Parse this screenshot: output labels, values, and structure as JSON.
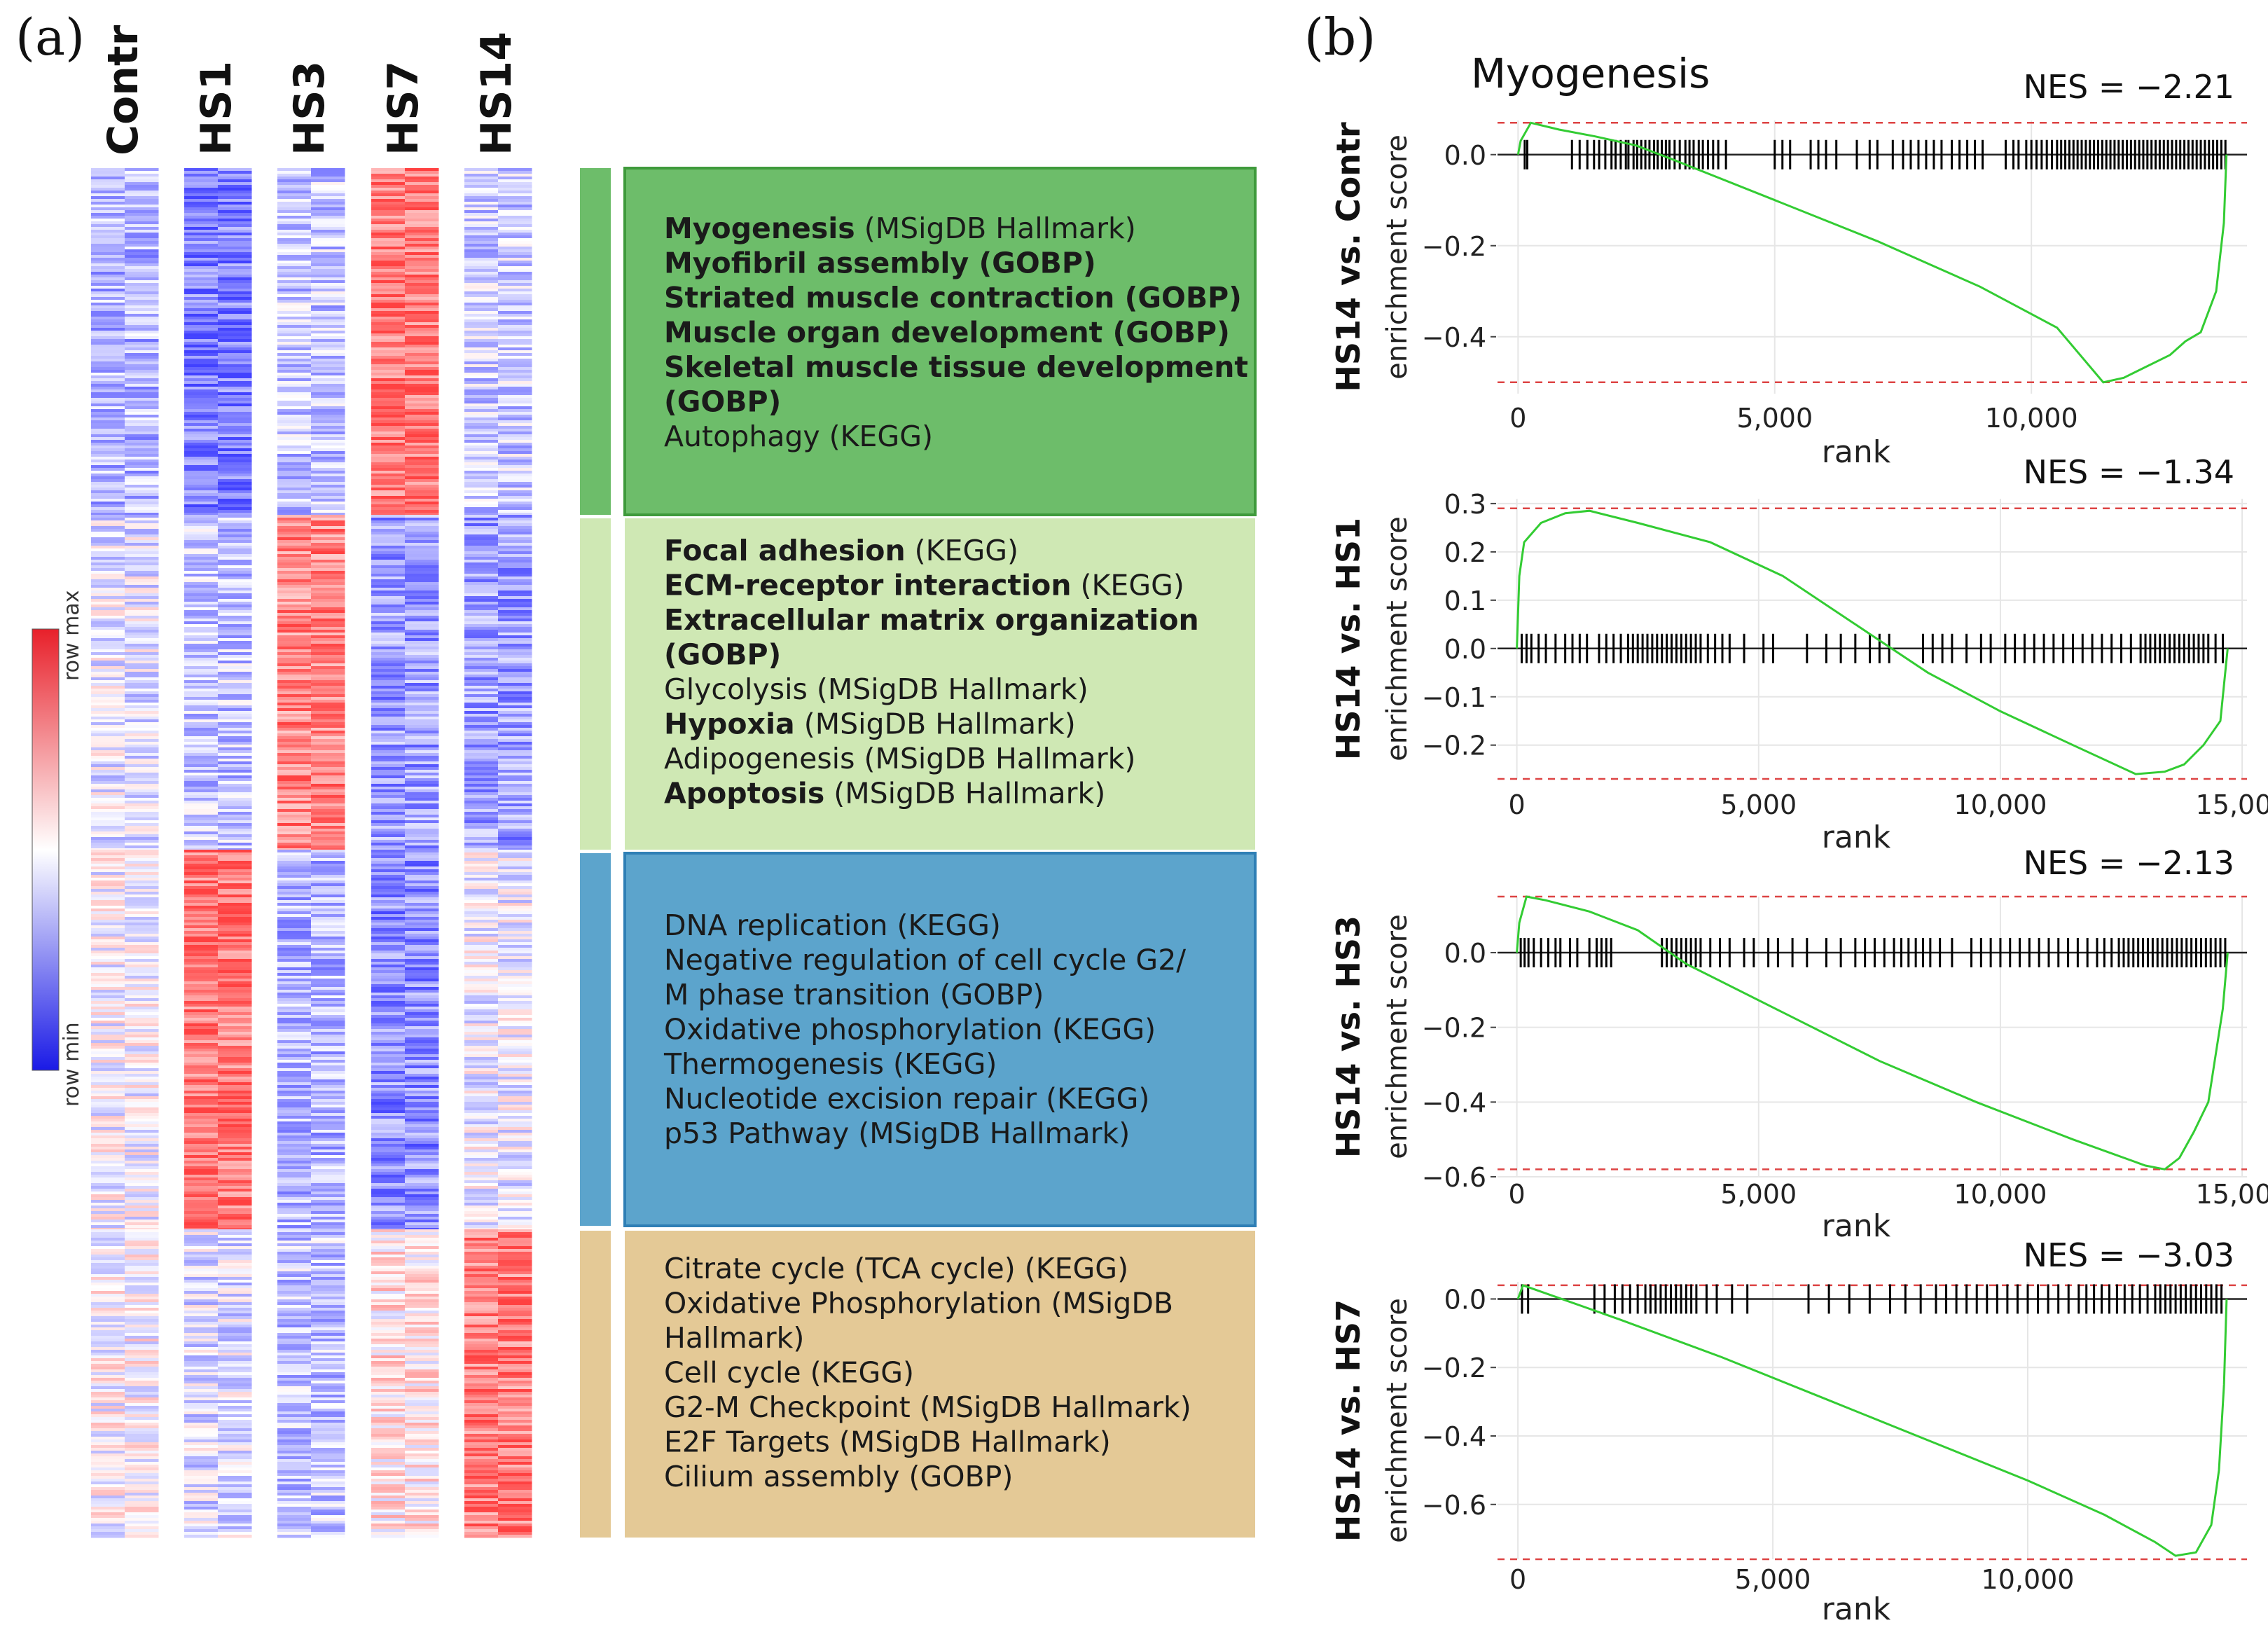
{
  "panel_a": {
    "letter": "(a)",
    "columns": [
      "Contr",
      "HS1",
      "HS3",
      "HS7",
      "HS14"
    ],
    "legend": {
      "max_label": "row max",
      "min_label": "row min"
    },
    "clusters": [
      {
        "color": "#6dbd6a",
        "box_color": "#6dbd6a",
        "column_means": [
          -0.45,
          -0.8,
          -0.35,
          0.85,
          -0.3
        ],
        "terms": [
          [
            {
              "text": "Myogenesis",
              "bold": true
            },
            {
              "text": " (MSigDB Hallmark)",
              "bold": false
            }
          ],
          [
            {
              "text": "Myofibril assembly (GOBP)",
              "bold": true
            }
          ],
          [
            {
              "text": "Striated muscle contraction (GOBP)",
              "bold": true
            }
          ],
          [
            {
              "text": "Muscle organ development (GOBP)",
              "bold": true
            }
          ],
          [
            {
              "text": "Skeletal muscle tissue development",
              "bold": true
            }
          ],
          [
            {
              "text": "(GOBP)",
              "bold": true
            }
          ],
          [
            {
              "text": "Autophagy (KEGG)",
              "bold": false
            }
          ]
        ]
      },
      {
        "color": "#cfe8b4",
        "box_color": "#cfe8b4",
        "column_means": [
          -0.15,
          -0.35,
          0.75,
          -0.6,
          -0.6
        ],
        "terms": [
          [
            {
              "text": "Focal adhesion",
              "bold": true
            },
            {
              "text": " (KEGG)",
              "bold": false
            }
          ],
          [
            {
              "text": "ECM-receptor interaction",
              "bold": true
            },
            {
              "text": " (KEGG)",
              "bold": false
            }
          ],
          [
            {
              "text": "Extracellular matrix organization",
              "bold": true
            }
          ],
          [
            {
              "text": "(GOBP)",
              "bold": true
            }
          ],
          [
            {
              "text": "Glycolysis (MSigDB Hallmark)",
              "bold": false
            }
          ],
          [
            {
              "text": "Hypoxia",
              "bold": true
            },
            {
              "text": " (MSigDB Hallmark)",
              "bold": false
            }
          ],
          [
            {
              "text": "Adipogenesis (MSigDB Hallmark)",
              "bold": false
            }
          ],
          [
            {
              "text": "Apoptosis",
              "bold": true
            },
            {
              "text": " (MSigDB Hallmark)",
              "bold": false
            }
          ]
        ]
      },
      {
        "color": "#5ca4cc",
        "box_color": "#5ca4cc",
        "column_means": [
          -0.05,
          0.85,
          -0.45,
          -0.7,
          -0.1
        ],
        "terms": [
          [
            {
              "text": "DNA replication (KEGG)",
              "bold": false
            }
          ],
          [
            {
              "text": "Negative regulation of cell cycle G2/",
              "bold": false
            }
          ],
          [
            {
              "text": "M phase transition (GOBP)",
              "bold": false
            }
          ],
          [
            {
              "text": "Oxidative phosphorylation (KEGG)",
              "bold": false
            }
          ],
          [
            {
              "text": "Thermogenesis (KEGG)",
              "bold": false
            }
          ],
          [
            {
              "text": "Nucleotide excision repair (KEGG)",
              "bold": false
            }
          ],
          [
            {
              "text": "p53 Pathway (MSigDB Hallmark)",
              "bold": false
            }
          ]
        ]
      },
      {
        "color": "#e4c996",
        "box_color": "#e4c996",
        "column_means": [
          0.0,
          -0.2,
          -0.35,
          0.15,
          0.8
        ],
        "terms": [
          [
            {
              "text": "Citrate cycle (TCA cycle) (KEGG)",
              "bold": false
            }
          ],
          [
            {
              "text": "Oxidative Phosphorylation (MSigDB",
              "bold": false
            }
          ],
          [
            {
              "text": "Hallmark)",
              "bold": false
            }
          ],
          [
            {
              "text": "Cell cycle (KEGG)",
              "bold": false
            }
          ],
          [
            {
              "text": "G2-M Checkpoint (MSigDB Hallmark)",
              "bold": false
            }
          ],
          [
            {
              "text": "E2F Targets (MSigDB Hallmark)",
              "bold": false
            }
          ],
          [
            {
              "text": "Cilium assembly (GOBP)",
              "bold": false
            }
          ]
        ]
      }
    ]
  },
  "panel_b": {
    "letter": "(b)",
    "gene_set": "Myogenesis",
    "x_label": "rank",
    "y_label": "enrichment score",
    "line_color": "#33cc33",
    "bound_color": "#dd4444"
  },
  "chart_data": [
    {
      "type": "line",
      "comparison": "HS14 vs. Contr",
      "nes_label": "NES = −2.21",
      "xlim": [
        -400,
        14200
      ],
      "ylim": [
        -0.525,
        0.075
      ],
      "xticks": [
        0,
        5000,
        10000
      ],
      "xtick_labels": [
        "0",
        "5,000",
        "10,000"
      ],
      "yticks": [
        0.0,
        -0.2,
        -0.4
      ],
      "ytick_labels": [
        "0.0",
        "−0.2",
        "−0.4"
      ],
      "max_es": 0.07,
      "min_es": -0.5,
      "es_points": [
        [
          0,
          0
        ],
        [
          50,
          0.03
        ],
        [
          250,
          0.07
        ],
        [
          800,
          0.055
        ],
        [
          1500,
          0.04
        ],
        [
          2300,
          0.02
        ],
        [
          3000,
          -0.01
        ],
        [
          5000,
          -0.1
        ],
        [
          7000,
          -0.19
        ],
        [
          9000,
          -0.29
        ],
        [
          10500,
          -0.38
        ],
        [
          11400,
          -0.5
        ],
        [
          11800,
          -0.49
        ],
        [
          12700,
          -0.44
        ],
        [
          13000,
          -0.41
        ],
        [
          13300,
          -0.39
        ],
        [
          13600,
          -0.3
        ],
        [
          13750,
          -0.15
        ],
        [
          13800,
          0
        ]
      ],
      "hits": [
        130,
        180,
        1050,
        1200,
        1350,
        1480,
        1580,
        1700,
        1820,
        1900,
        2000,
        2100,
        2150,
        2250,
        2320,
        2400,
        2480,
        2560,
        2650,
        2720,
        2800,
        2880,
        2950,
        3050,
        3150,
        3260,
        3340,
        3420,
        3520,
        3600,
        3700,
        3800,
        3900,
        4050,
        5000,
        5150,
        5300,
        5700,
        5850,
        6000,
        6200,
        6600,
        6850,
        7000,
        7300,
        7500,
        7650,
        7800,
        7950,
        8100,
        8250,
        8450,
        8600,
        8750,
        8900,
        9050,
        9500,
        9650,
        9750,
        9900,
        10000,
        10100,
        10200,
        10300,
        10400,
        10500,
        10580,
        10660,
        10740,
        10820,
        10900,
        10980,
        11060,
        11140,
        11220,
        11300,
        11380,
        11460,
        11540,
        11620,
        11700,
        11780,
        11860,
        11940,
        12020,
        12100,
        12180,
        12260,
        12340,
        12420,
        12500,
        12580,
        12660,
        12740,
        12820,
        12900,
        12980,
        13060,
        13140,
        13220,
        13300,
        13380,
        13460,
        13540,
        13620,
        13700,
        13780
      ]
    },
    {
      "type": "line",
      "comparison": "HS14 vs. HS1",
      "nes_label": "NES = −1.34",
      "xlim": [
        -400,
        15100
      ],
      "ylim": [
        -0.27,
        0.31
      ],
      "xticks": [
        0,
        5000,
        10000,
        15000
      ],
      "xtick_labels": [
        "0",
        "5,000",
        "10,000",
        "15,000"
      ],
      "yticks": [
        0.3,
        0.2,
        0.1,
        0.0,
        -0.1,
        -0.2
      ],
      "ytick_labels": [
        "0.3",
        "0.2",
        "0.1",
        "0.0",
        "−0.1",
        "−0.2"
      ],
      "max_es": 0.29,
      "min_es": -0.27,
      "es_points": [
        [
          0,
          0
        ],
        [
          50,
          0.15
        ],
        [
          150,
          0.22
        ],
        [
          500,
          0.26
        ],
        [
          1000,
          0.28
        ],
        [
          1500,
          0.285
        ],
        [
          2500,
          0.26
        ],
        [
          4000,
          0.22
        ],
        [
          5500,
          0.15
        ],
        [
          7000,
          0.05
        ],
        [
          8500,
          -0.05
        ],
        [
          10000,
          -0.13
        ],
        [
          11500,
          -0.2
        ],
        [
          12800,
          -0.26
        ],
        [
          13400,
          -0.255
        ],
        [
          13800,
          -0.24
        ],
        [
          14200,
          -0.2
        ],
        [
          14550,
          -0.15
        ],
        [
          14700,
          0
        ]
      ],
      "hits": [
        100,
        200,
        300,
        450,
        600,
        800,
        1000,
        1150,
        1300,
        1450,
        1700,
        1850,
        2000,
        2150,
        2300,
        2400,
        2500,
        2600,
        2700,
        2800,
        2900,
        3000,
        3100,
        3200,
        3300,
        3400,
        3500,
        3600,
        3700,
        3800,
        3950,
        4100,
        4250,
        4400,
        4700,
        5100,
        5300,
        6000,
        6400,
        6700,
        7000,
        7300,
        7500,
        7700,
        8400,
        8600,
        8800,
        9000,
        9300,
        9600,
        9800,
        10100,
        10300,
        10500,
        10700,
        10900,
        11100,
        11300,
        11500,
        11700,
        11900,
        12100,
        12300,
        12500,
        12700,
        12900,
        13000,
        13100,
        13200,
        13300,
        13400,
        13500,
        13600,
        13700,
        13800,
        13900,
        14000,
        14100,
        14200,
        14300,
        14450,
        14600
      ]
    },
    {
      "type": "line",
      "comparison": "HS14 vs. HS3",
      "nes_label": "NES = −2.13",
      "xlim": [
        -400,
        15100
      ],
      "ylim": [
        -0.6,
        0.15
      ],
      "xticks": [
        0,
        5000,
        10000,
        15000
      ],
      "xtick_labels": [
        "0",
        "5,000",
        "10,000",
        "15,000"
      ],
      "yticks": [
        0.0,
        -0.2,
        -0.4,
        -0.6
      ],
      "ytick_labels": [
        "0.0",
        "−0.2",
        "−0.4",
        "−0.6"
      ],
      "max_es": 0.15,
      "min_es": -0.58,
      "es_points": [
        [
          0,
          0
        ],
        [
          50,
          0.08
        ],
        [
          200,
          0.15
        ],
        [
          600,
          0.14
        ],
        [
          1500,
          0.11
        ],
        [
          2500,
          0.06
        ],
        [
          3500,
          -0.03
        ],
        [
          5500,
          -0.16
        ],
        [
          7500,
          -0.29
        ],
        [
          9500,
          -0.4
        ],
        [
          11500,
          -0.5
        ],
        [
          13000,
          -0.57
        ],
        [
          13400,
          -0.58
        ],
        [
          13700,
          -0.55
        ],
        [
          14000,
          -0.48
        ],
        [
          14300,
          -0.4
        ],
        [
          14600,
          -0.15
        ],
        [
          14700,
          0
        ]
      ],
      "hits": [
        80,
        160,
        240,
        350,
        500,
        650,
        800,
        900,
        1100,
        1250,
        1500,
        1650,
        1750,
        1850,
        1950,
        3000,
        3100,
        3200,
        3300,
        3400,
        3500,
        3600,
        3700,
        3800,
        4000,
        4200,
        4400,
        4700,
        4900,
        5200,
        5400,
        5700,
        6000,
        6400,
        6700,
        7000,
        7200,
        7400,
        7600,
        7800,
        7950,
        8100,
        8250,
        8400,
        8550,
        8750,
        9000,
        9400,
        9600,
        9800,
        10000,
        10200,
        10400,
        10600,
        10800,
        11000,
        11200,
        11400,
        11600,
        11800,
        12000,
        12150,
        12300,
        12450,
        12550,
        12650,
        12750,
        12850,
        12950,
        13050,
        13150,
        13250,
        13350,
        13450,
        13550,
        13650,
        13750,
        13850,
        13950,
        14050,
        14150,
        14250,
        14350,
        14450,
        14550,
        14650
      ]
    },
    {
      "type": "line",
      "comparison": "HS14 vs. HS7",
      "nes_label": "NES = −3.03",
      "xlim": [
        -400,
        14300
      ],
      "ylim": [
        -0.76,
        0.05
      ],
      "xticks": [
        0,
        5000,
        10000
      ],
      "xtick_labels": [
        "0",
        "5,000",
        "10,000"
      ],
      "yticks": [
        0.0,
        -0.2,
        -0.4,
        -0.6
      ],
      "ytick_labels": [
        "0.0",
        "−0.2",
        "−0.4",
        "−0.6"
      ],
      "max_es": 0.04,
      "min_es": -0.76,
      "es_points": [
        [
          0,
          0
        ],
        [
          100,
          0.04
        ],
        [
          2000,
          -0.06
        ],
        [
          4000,
          -0.17
        ],
        [
          6000,
          -0.29
        ],
        [
          8000,
          -0.41
        ],
        [
          10000,
          -0.53
        ],
        [
          11500,
          -0.63
        ],
        [
          12500,
          -0.71
        ],
        [
          12900,
          -0.75
        ],
        [
          13300,
          -0.74
        ],
        [
          13600,
          -0.66
        ],
        [
          13750,
          -0.5
        ],
        [
          13850,
          -0.25
        ],
        [
          13900,
          0
        ]
      ],
      "hits": [
        80,
        200,
        1500,
        1700,
        1900,
        2050,
        2200,
        2350,
        2500,
        2600,
        2700,
        2800,
        2900,
        3000,
        3100,
        3200,
        3300,
        3400,
        3500,
        3700,
        3900,
        4200,
        4500,
        5700,
        6100,
        6500,
        6900,
        7300,
        7600,
        7900,
        8200,
        8400,
        8600,
        8800,
        9000,
        9200,
        9400,
        9600,
        9800,
        10000,
        10200,
        10400,
        10600,
        10800,
        11000,
        11150,
        11300,
        11450,
        11600,
        11750,
        11900,
        12050,
        12200,
        12350,
        12500,
        12600,
        12700,
        12800,
        12900,
        13000,
        13100,
        13200,
        13300,
        13400,
        13500,
        13600,
        13700,
        13800
      ]
    }
  ]
}
